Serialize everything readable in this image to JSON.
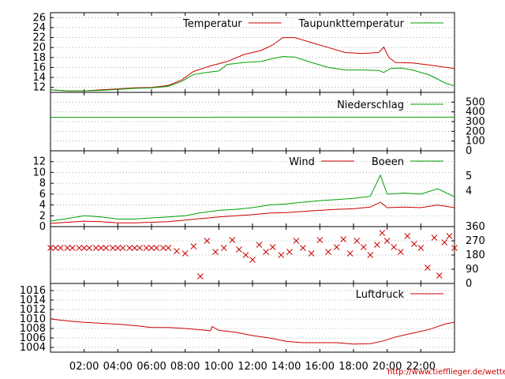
{
  "colors": {
    "red": "#cc0000",
    "green": "#00a000",
    "grid": "#9a9a9a",
    "frame": "#000000"
  },
  "footer": {
    "url": "http://www.tiefflieger.de/wetter/"
  },
  "chart_data": [
    {
      "type": "line",
      "panel": "temperature",
      "x_range_hours": [
        0,
        24
      ],
      "ylim": [
        11,
        27
      ],
      "y_ticks": [
        "12",
        "14",
        "16",
        "18",
        "20",
        "22",
        "24",
        "26"
      ],
      "grid": true,
      "legend": "top-right",
      "series": [
        {
          "name": "Temperatur",
          "color": "red",
          "points": [
            [
              0,
              11.5
            ],
            [
              1,
              11.3
            ],
            [
              2,
              11.3
            ],
            [
              3,
              11.5
            ],
            [
              4,
              11.7
            ],
            [
              5,
              11.9
            ],
            [
              6,
              12.0
            ],
            [
              7,
              12.4
            ],
            [
              7.8,
              13.5
            ],
            [
              8.5,
              15.2
            ],
            [
              9.5,
              16.3
            ],
            [
              10.5,
              17.2
            ],
            [
              11.5,
              18.6
            ],
            [
              12.5,
              19.4
            ],
            [
              13.2,
              20.5
            ],
            [
              13.8,
              22.0
            ],
            [
              14.5,
              22.0
            ],
            [
              15.5,
              21.0
            ],
            [
              16.5,
              20.0
            ],
            [
              17.5,
              19.0
            ],
            [
              18.5,
              18.8
            ],
            [
              19.5,
              19.0
            ],
            [
              19.8,
              20.1
            ],
            [
              20.1,
              18.0
            ],
            [
              20.5,
              17.0
            ],
            [
              21.5,
              16.9
            ],
            [
              22.5,
              16.5
            ],
            [
              23.5,
              16.0
            ],
            [
              24,
              15.8
            ]
          ]
        },
        {
          "name": "Taupunkttemperatur",
          "color": "green",
          "points": [
            [
              0,
              11.5
            ],
            [
              1,
              11.3
            ],
            [
              2,
              11.3
            ],
            [
              3,
              11.4
            ],
            [
              4,
              11.6
            ],
            [
              5,
              11.8
            ],
            [
              6,
              11.9
            ],
            [
              7,
              12.2
            ],
            [
              7.8,
              13.2
            ],
            [
              8.5,
              14.6
            ],
            [
              9.5,
              15.1
            ],
            [
              10,
              15.3
            ],
            [
              10.5,
              16.6
            ],
            [
              11.5,
              17.0
            ],
            [
              12.5,
              17.2
            ],
            [
              13.2,
              17.8
            ],
            [
              13.8,
              18.2
            ],
            [
              14.5,
              18.1
            ],
            [
              15.5,
              17.0
            ],
            [
              16.5,
              16.0
            ],
            [
              17.5,
              15.5
            ],
            [
              18.5,
              15.5
            ],
            [
              19.5,
              15.4
            ],
            [
              19.8,
              15.0
            ],
            [
              20.2,
              15.8
            ],
            [
              20.8,
              15.9
            ],
            [
              21.5,
              15.5
            ],
            [
              22.5,
              14.5
            ],
            [
              23.5,
              12.8
            ],
            [
              24,
              12.3
            ]
          ]
        }
      ]
    },
    {
      "type": "line",
      "panel": "precipitation",
      "ylim": [
        0,
        600
      ],
      "y_ticks": [
        "0",
        "100",
        "200",
        "300",
        "400",
        "500"
      ],
      "y_axis_side": "right",
      "grid": true,
      "series": [
        {
          "name": "Niederschlag",
          "color": "green",
          "points": [
            [
              0,
              343.6
            ],
            [
              9.6,
              343.6
            ],
            [
              9.7,
              345.0
            ],
            [
              24,
              345.0
            ]
          ]
        }
      ]
    },
    {
      "type": "line",
      "panel": "wind",
      "ylim": [
        0,
        14
      ],
      "y_ticks": [
        "0",
        "2",
        "4",
        "6",
        "8",
        "10",
        "12"
      ],
      "right_ticks": [
        "4",
        "5"
      ],
      "grid": true,
      "series": [
        {
          "name": "Wind",
          "color": "red",
          "points": [
            [
              0,
              0.6
            ],
            [
              1,
              0.8
            ],
            [
              2,
              1.0
            ],
            [
              3,
              0.9
            ],
            [
              4,
              0.7
            ],
            [
              5,
              0.7
            ],
            [
              6,
              0.8
            ],
            [
              7,
              0.9
            ],
            [
              8,
              1.2
            ],
            [
              9,
              1.5
            ],
            [
              10,
              1.8
            ],
            [
              11,
              2.0
            ],
            [
              12,
              2.2
            ],
            [
              13,
              2.5
            ],
            [
              14,
              2.6
            ],
            [
              15,
              2.8
            ],
            [
              16,
              3.0
            ],
            [
              17,
              3.2
            ],
            [
              18,
              3.3
            ],
            [
              19,
              3.6
            ],
            [
              19.6,
              4.5
            ],
            [
              20,
              3.5
            ],
            [
              21,
              3.6
            ],
            [
              22,
              3.5
            ],
            [
              23,
              4.0
            ],
            [
              24,
              3.5
            ]
          ]
        },
        {
          "name": "Boeen",
          "color": "green",
          "points": [
            [
              0,
              1.0
            ],
            [
              1,
              1.5
            ],
            [
              2,
              2.0
            ],
            [
              3,
              1.8
            ],
            [
              4,
              1.4
            ],
            [
              5,
              1.4
            ],
            [
              6,
              1.6
            ],
            [
              7,
              1.8
            ],
            [
              8,
              2.0
            ],
            [
              9,
              2.6
            ],
            [
              10,
              3.0
            ],
            [
              11,
              3.2
            ],
            [
              12,
              3.5
            ],
            [
              13,
              4.0
            ],
            [
              14,
              4.2
            ],
            [
              15,
              4.5
            ],
            [
              16,
              4.8
            ],
            [
              17,
              5.0
            ],
            [
              18,
              5.2
            ],
            [
              19,
              5.6
            ],
            [
              19.6,
              9.5
            ],
            [
              20,
              6.0
            ],
            [
              21,
              6.2
            ],
            [
              22,
              6.0
            ],
            [
              23,
              7.0
            ],
            [
              24,
              5.5
            ]
          ]
        }
      ]
    },
    {
      "type": "scatter",
      "panel": "wind_direction",
      "ylim": [
        0,
        360
      ],
      "y_ticks": [
        "0",
        "90",
        "180",
        "270",
        "360"
      ],
      "y_axis_side": "right",
      "grid": true,
      "marker": "x",
      "color": "red",
      "note_values": "directions in degrees; dense band near 225 until about 07:00, scattered between 180 and 300 afterwards",
      "points": [
        [
          0,
          225
        ],
        [
          0.3,
          225
        ],
        [
          0.6,
          225
        ],
        [
          1,
          225
        ],
        [
          1.3,
          225
        ],
        [
          1.7,
          225
        ],
        [
          2,
          225
        ],
        [
          2.3,
          225
        ],
        [
          2.7,
          225
        ],
        [
          3,
          225
        ],
        [
          3.3,
          225
        ],
        [
          3.7,
          225
        ],
        [
          4,
          225
        ],
        [
          4.3,
          225
        ],
        [
          4.7,
          225
        ],
        [
          5,
          225
        ],
        [
          5.3,
          225
        ],
        [
          5.7,
          225
        ],
        [
          6,
          225
        ],
        [
          6.3,
          225
        ],
        [
          6.7,
          225
        ],
        [
          7,
          225
        ],
        [
          7.5,
          205
        ],
        [
          8,
          190
        ],
        [
          8.5,
          235
        ],
        [
          8.9,
          45
        ],
        [
          9.3,
          270
        ],
        [
          9.8,
          200
        ],
        [
          10.3,
          225
        ],
        [
          10.8,
          275
        ],
        [
          11.2,
          215
        ],
        [
          11.6,
          180
        ],
        [
          12,
          150
        ],
        [
          12.4,
          245
        ],
        [
          12.8,
          200
        ],
        [
          13.2,
          230
        ],
        [
          13.7,
          180
        ],
        [
          14.2,
          200
        ],
        [
          14.6,
          270
        ],
        [
          15,
          225
        ],
        [
          15.5,
          190
        ],
        [
          16,
          275
        ],
        [
          16.5,
          200
        ],
        [
          17,
          230
        ],
        [
          17.4,
          280
        ],
        [
          17.8,
          190
        ],
        [
          18.2,
          270
        ],
        [
          18.6,
          230
        ],
        [
          19,
          180
        ],
        [
          19.4,
          245
        ],
        [
          19.7,
          320
        ],
        [
          20,
          270
        ],
        [
          20.4,
          230
        ],
        [
          20.8,
          200
        ],
        [
          21.2,
          300
        ],
        [
          21.6,
          250
        ],
        [
          22,
          225
        ],
        [
          22.4,
          100
        ],
        [
          22.8,
          290
        ],
        [
          23.1,
          50
        ],
        [
          23.4,
          260
        ],
        [
          23.7,
          300
        ],
        [
          24,
          225
        ]
      ]
    },
    {
      "type": "line",
      "panel": "pressure",
      "ylim": [
        1003,
        1017.5
      ],
      "y_ticks": [
        "1004",
        "1006",
        "1008",
        "1010",
        "1012",
        "1014",
        "1016"
      ],
      "grid": true,
      "series": [
        {
          "name": "Luftdruck",
          "color": "red",
          "points": [
            [
              0,
              1010.0
            ],
            [
              1,
              1009.6
            ],
            [
              2,
              1009.3
            ],
            [
              3,
              1009.1
            ],
            [
              4,
              1008.9
            ],
            [
              5,
              1008.6
            ],
            [
              6,
              1008.2
            ],
            [
              7,
              1008.2
            ],
            [
              8,
              1008.0
            ],
            [
              9,
              1007.7
            ],
            [
              9.5,
              1007.5
            ],
            [
              9.6,
              1008.4
            ],
            [
              10,
              1007.6
            ],
            [
              11,
              1007.2
            ],
            [
              12,
              1006.5
            ],
            [
              13,
              1006.0
            ],
            [
              14,
              1005.3
            ],
            [
              15,
              1005.0
            ],
            [
              16,
              1005.0
            ],
            [
              17,
              1005.0
            ],
            [
              18,
              1004.7
            ],
            [
              19,
              1004.8
            ],
            [
              19.7,
              1005.3
            ],
            [
              20.5,
              1006.2
            ],
            [
              21.5,
              1007.0
            ],
            [
              22.5,
              1007.8
            ],
            [
              23.5,
              1009.0
            ],
            [
              24,
              1009.3
            ]
          ]
        }
      ]
    }
  ],
  "x_axis": {
    "tick_labels": [
      "02:00",
      "04:00",
      "06:00",
      "08:00",
      "10:00",
      "12:00",
      "14:00",
      "16:00",
      "18:00",
      "20:00",
      "22:00"
    ],
    "tick_hours": [
      2,
      4,
      6,
      8,
      10,
      12,
      14,
      16,
      18,
      20,
      22
    ]
  }
}
